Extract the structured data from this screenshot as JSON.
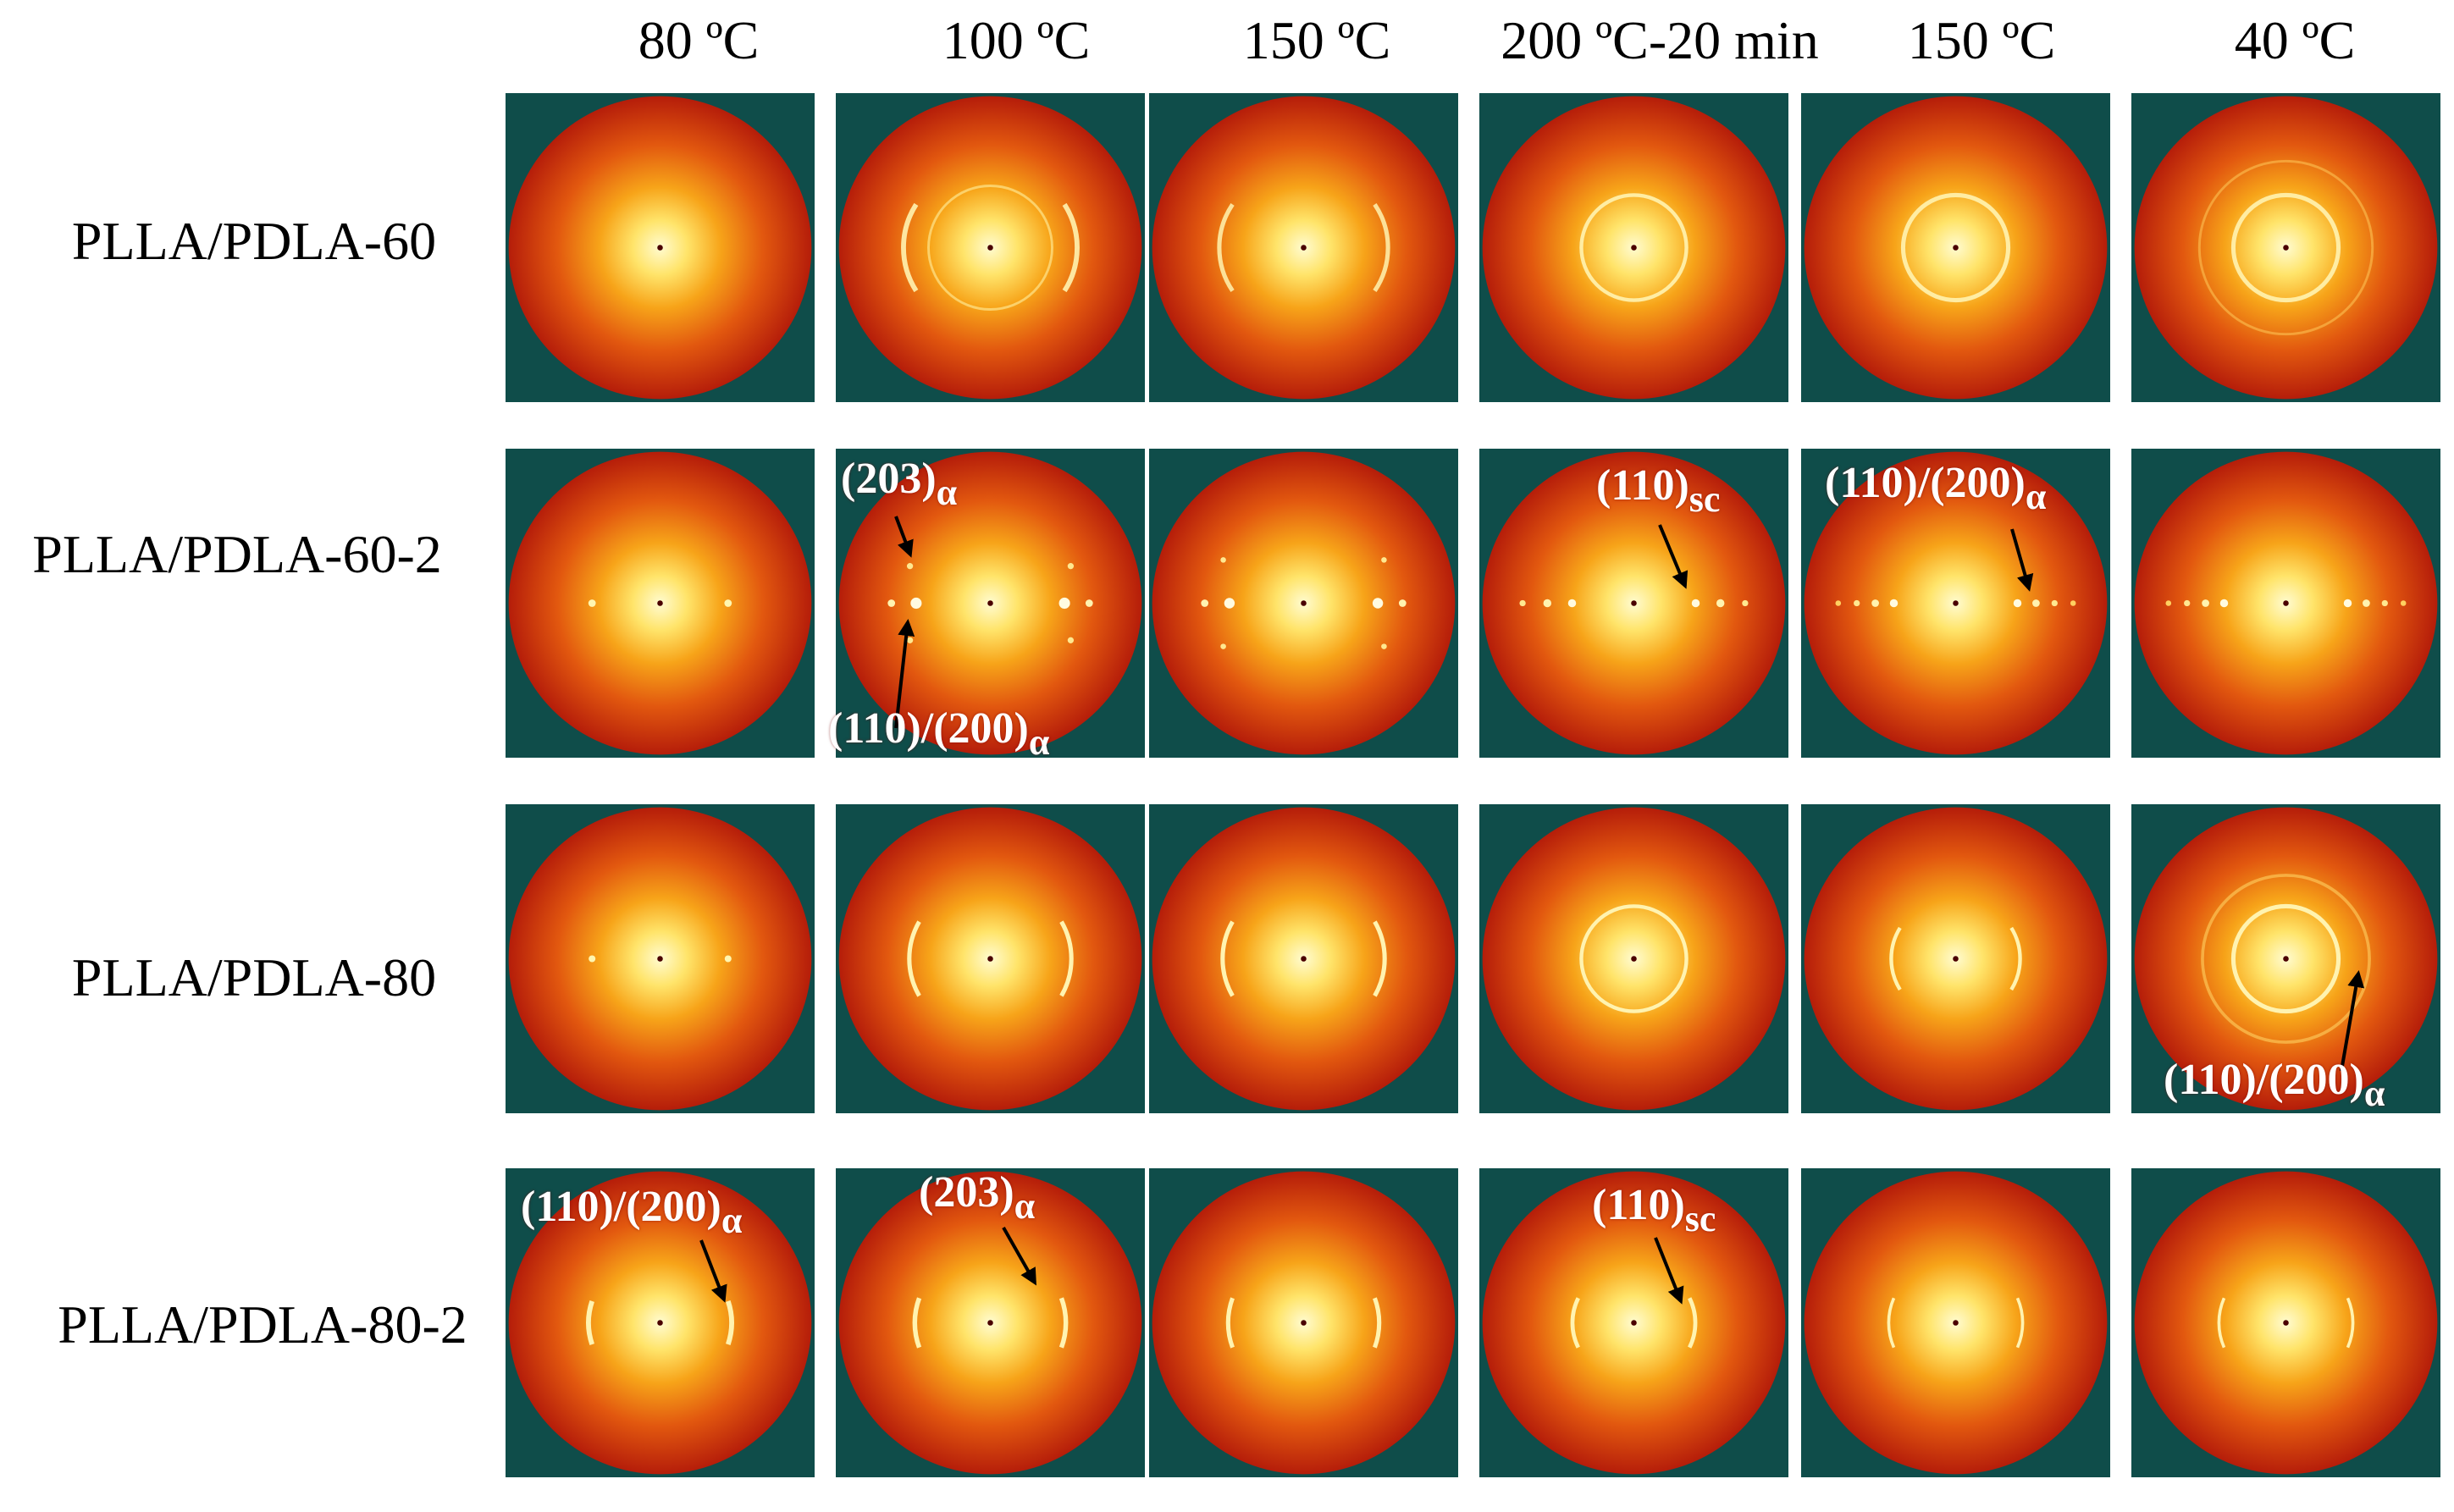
{
  "column_headers": [
    "80 ºC",
    "100 ºC",
    "150 ºC",
    "200 ºC-20 min",
    "150 ºC",
    "40 ºC"
  ],
  "row_labels": [
    "PLLA/PDLA-60",
    "PLLA/PDLA-60-2",
    "PLLA/PDLA-80",
    "PLLA/PDLA-80-2"
  ],
  "annotations": {
    "r2c2_top": {
      "main": "(203)",
      "sub": "α"
    },
    "r2c2_bottom": {
      "main": "(110)/(200)",
      "sub": "α"
    },
    "r2c4": {
      "main": "(110)",
      "sub": "sc"
    },
    "r2c5": {
      "main": "(110)/(200)",
      "sub": "α"
    },
    "r3c6": {
      "main": "(110)/(200)",
      "sub": "α"
    },
    "r4c1": {
      "main": "(110)/(200)",
      "sub": "α"
    },
    "r4c2": {
      "main": "(203)",
      "sub": "α"
    },
    "r4c4": {
      "main": "(110)",
      "sub": "sc"
    }
  },
  "colors": {
    "panel_background": "#0f4d4a",
    "pattern_center": "#fffbd0",
    "pattern_mid": "#f5a012",
    "pattern_edge": "#b81e0a",
    "annotation_text": "#ffffff",
    "arrow": "#000000"
  }
}
